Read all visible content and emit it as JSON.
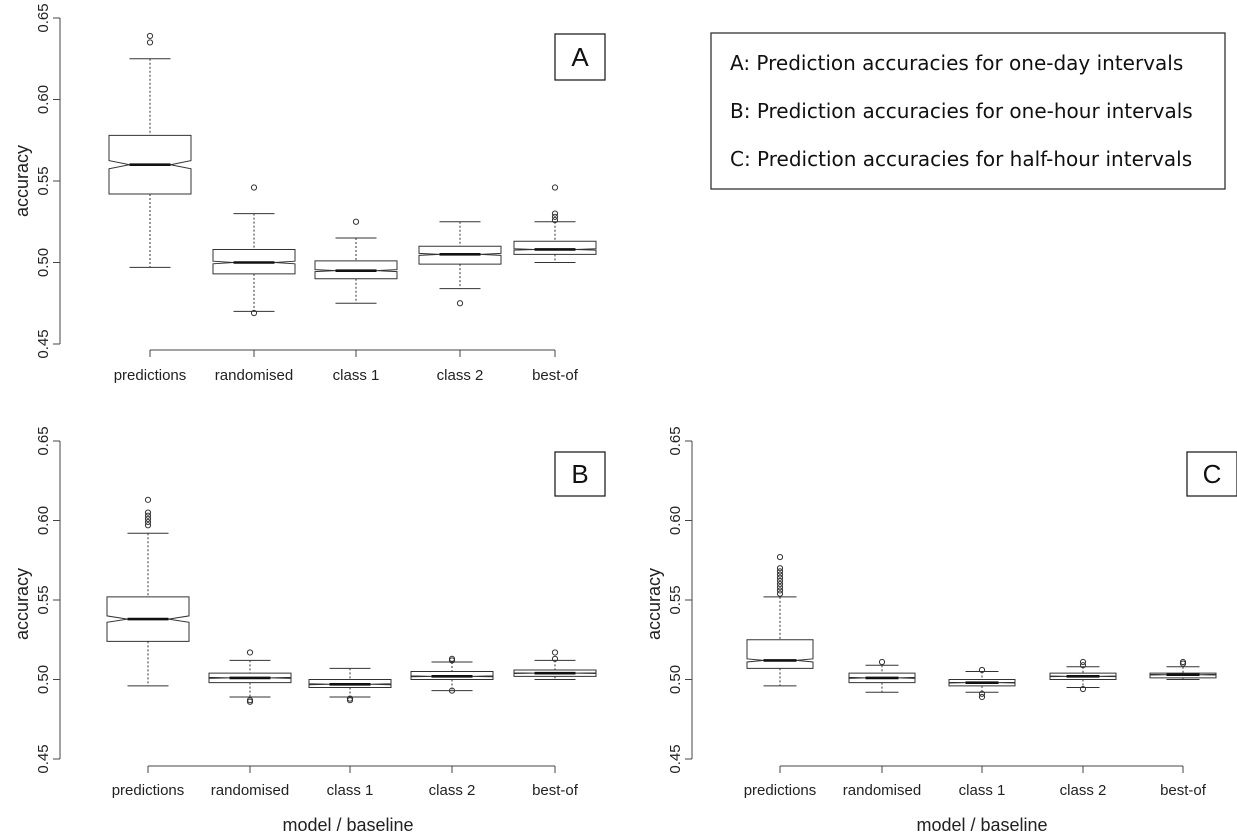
{
  "legend": [
    "A: Prediction accuracies for one-day intervals",
    "B: Prediction accuracies for one-hour intervals",
    "C: Prediction accuracies for half-hour intervals"
  ],
  "chart_data": [
    {
      "type": "box",
      "panel_label": "A",
      "ylabel": "accuracy",
      "xlabel": "",
      "ylim": [
        0.45,
        0.65
      ],
      "y_ticks": [
        "0.45",
        "0.50",
        "0.55",
        "0.60",
        "0.65"
      ],
      "categories": [
        "predictions",
        "randomised",
        "class 1",
        "class 2",
        "best-of"
      ],
      "boxes": [
        {
          "min": 0.497,
          "q1": 0.542,
          "median": 0.56,
          "q3": 0.578,
          "max": 0.625,
          "notch": 0.0025,
          "outliers": [
            0.635,
            0.639
          ]
        },
        {
          "min": 0.47,
          "q1": 0.493,
          "median": 0.5,
          "q3": 0.508,
          "max": 0.53,
          "notch": 0.0008,
          "outliers": [
            0.546,
            0.469
          ]
        },
        {
          "min": 0.475,
          "q1": 0.49,
          "median": 0.495,
          "q3": 0.501,
          "max": 0.515,
          "notch": 0.0006,
          "outliers": [
            0.525
          ]
        },
        {
          "min": 0.484,
          "q1": 0.499,
          "median": 0.505,
          "q3": 0.51,
          "max": 0.525,
          "notch": 0.0006,
          "outliers": [
            0.475
          ]
        },
        {
          "min": 0.5,
          "q1": 0.505,
          "median": 0.508,
          "q3": 0.513,
          "max": 0.525,
          "notch": 0.0004,
          "outliers": [
            0.546,
            0.53,
            0.528,
            0.526
          ]
        }
      ]
    },
    {
      "type": "box",
      "panel_label": "B",
      "ylabel": "accuracy",
      "xlabel": "model / baseline",
      "ylim": [
        0.45,
        0.65
      ],
      "y_ticks": [
        "0.45",
        "0.50",
        "0.55",
        "0.60",
        "0.65"
      ],
      "categories": [
        "predictions",
        "randomised",
        "class 1",
        "class 2",
        "best-of"
      ],
      "boxes": [
        {
          "min": 0.496,
          "q1": 0.524,
          "median": 0.538,
          "q3": 0.552,
          "max": 0.592,
          "notch": 0.002,
          "outliers": [
            0.597,
            0.599,
            0.601,
            0.603,
            0.605,
            0.613
          ]
        },
        {
          "min": 0.489,
          "q1": 0.498,
          "median": 0.501,
          "q3": 0.504,
          "max": 0.512,
          "notch": 0.0003,
          "outliers": [
            0.517,
            0.487,
            0.486
          ]
        },
        {
          "min": 0.489,
          "q1": 0.495,
          "median": 0.497,
          "q3": 0.5,
          "max": 0.507,
          "notch": 0.0003,
          "outliers": [
            0.488,
            0.487
          ]
        },
        {
          "min": 0.493,
          "q1": 0.5,
          "median": 0.502,
          "q3": 0.505,
          "max": 0.511,
          "notch": 0.0003,
          "outliers": [
            0.513,
            0.512,
            0.493
          ]
        },
        {
          "min": 0.5,
          "q1": 0.502,
          "median": 0.504,
          "q3": 0.506,
          "max": 0.512,
          "notch": 0.0002,
          "outliers": [
            0.517,
            0.513
          ]
        }
      ]
    },
    {
      "type": "box",
      "panel_label": "C",
      "ylabel": "accuracy",
      "xlabel": "model / baseline",
      "ylim": [
        0.45,
        0.65
      ],
      "y_ticks": [
        "0.45",
        "0.50",
        "0.55",
        "0.60",
        "0.65"
      ],
      "categories": [
        "predictions",
        "randomised",
        "class 1",
        "class 2",
        "best-of"
      ],
      "boxes": [
        {
          "min": 0.496,
          "q1": 0.507,
          "median": 0.512,
          "q3": 0.525,
          "max": 0.552,
          "notch": 0.001,
          "outliers": [
            0.554,
            0.556,
            0.558,
            0.56,
            0.562,
            0.564,
            0.566,
            0.568,
            0.57,
            0.577
          ]
        },
        {
          "min": 0.492,
          "q1": 0.498,
          "median": 0.501,
          "q3": 0.504,
          "max": 0.509,
          "notch": 0.0003,
          "outliers": [
            0.511
          ]
        },
        {
          "min": 0.492,
          "q1": 0.496,
          "median": 0.498,
          "q3": 0.5,
          "max": 0.505,
          "notch": 0.0002,
          "outliers": [
            0.506,
            0.491,
            0.489
          ]
        },
        {
          "min": 0.495,
          "q1": 0.5,
          "median": 0.502,
          "q3": 0.504,
          "max": 0.508,
          "notch": 0.0002,
          "outliers": [
            0.511,
            0.509,
            0.494
          ]
        },
        {
          "min": 0.5,
          "q1": 0.501,
          "median": 0.503,
          "q3": 0.504,
          "max": 0.508,
          "notch": 0.0002,
          "outliers": [
            0.511,
            0.51
          ]
        }
      ]
    }
  ]
}
